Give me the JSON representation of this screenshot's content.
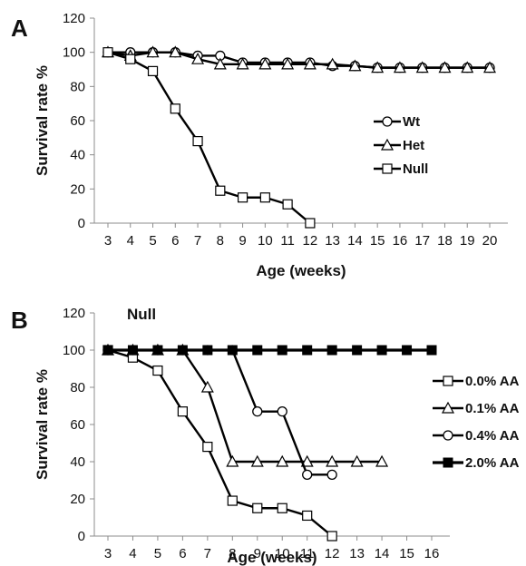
{
  "chart_data": [
    {
      "type": "line",
      "panel": "A",
      "title": "",
      "xlabel": "Age (weeks)",
      "ylabel": "Survival rate %",
      "ylim": [
        0,
        120
      ],
      "yticks": [
        0,
        20,
        40,
        60,
        80,
        100,
        120
      ],
      "x": [
        3,
        4,
        5,
        6,
        7,
        8,
        9,
        10,
        11,
        12,
        13,
        14,
        15,
        16,
        17,
        18,
        19,
        20
      ],
      "legend_position": "right",
      "series": [
        {
          "name": "Wt",
          "marker": "circle",
          "x": [
            3,
            4,
            5,
            6,
            7,
            8,
            9,
            10,
            11,
            12,
            13,
            14,
            15,
            16,
            17,
            18,
            19,
            20
          ],
          "values": [
            100,
            100,
            100,
            100,
            98,
            98,
            94,
            94,
            94,
            94,
            92,
            92,
            91,
            91,
            91,
            91,
            91,
            91
          ]
        },
        {
          "name": "Het",
          "marker": "triangle",
          "x": [
            3,
            4,
            5,
            6,
            7,
            8,
            9,
            10,
            11,
            12,
            13,
            14,
            15,
            16,
            17,
            18,
            19,
            20
          ],
          "values": [
            100,
            98,
            100,
            100,
            96,
            93,
            93,
            93,
            93,
            93,
            93,
            92,
            91,
            91,
            91,
            91,
            91,
            91
          ]
        },
        {
          "name": "Null",
          "marker": "square",
          "x": [
            3,
            4,
            5,
            6,
            7,
            8,
            9,
            10,
            11,
            12
          ],
          "values": [
            100,
            96,
            89,
            67,
            48,
            19,
            15,
            15,
            11,
            0
          ]
        }
      ]
    },
    {
      "type": "line",
      "panel": "B",
      "title": "Null",
      "xlabel": "Age  (weeks)",
      "ylabel": "Survival rate %",
      "ylim": [
        0,
        120
      ],
      "yticks": [
        0,
        20,
        40,
        60,
        80,
        100,
        120
      ],
      "x": [
        3,
        4,
        5,
        6,
        7,
        8,
        9,
        10,
        11,
        12,
        13,
        14,
        15,
        16
      ],
      "legend_position": "right",
      "series": [
        {
          "name": "0.0% AA",
          "marker": "square",
          "x": [
            3,
            4,
            5,
            6,
            7,
            8,
            9,
            10,
            11,
            12
          ],
          "values": [
            100,
            96,
            89,
            67,
            48,
            19,
            15,
            15,
            11,
            0
          ]
        },
        {
          "name": "0.1% AA",
          "marker": "triangle",
          "x": [
            3,
            4,
            5,
            6,
            7,
            8,
            9,
            10,
            11,
            12,
            13,
            14
          ],
          "values": [
            100,
            100,
            100,
            100,
            80,
            40,
            40,
            40,
            40,
            40,
            40,
            40
          ]
        },
        {
          "name": "0.4% AA",
          "marker": "circle",
          "x": [
            3,
            4,
            5,
            6,
            7,
            8,
            9,
            10,
            11,
            12
          ],
          "values": [
            100,
            100,
            100,
            100,
            100,
            100,
            67,
            67,
            33,
            33
          ]
        },
        {
          "name": "2.0% AA",
          "marker": "filled-square",
          "x": [
            3,
            4,
            5,
            6,
            7,
            8,
            9,
            10,
            11,
            12,
            13,
            14,
            15,
            16
          ],
          "values": [
            100,
            100,
            100,
            100,
            100,
            100,
            100,
            100,
            100,
            100,
            100,
            100,
            100,
            100
          ]
        }
      ]
    }
  ]
}
